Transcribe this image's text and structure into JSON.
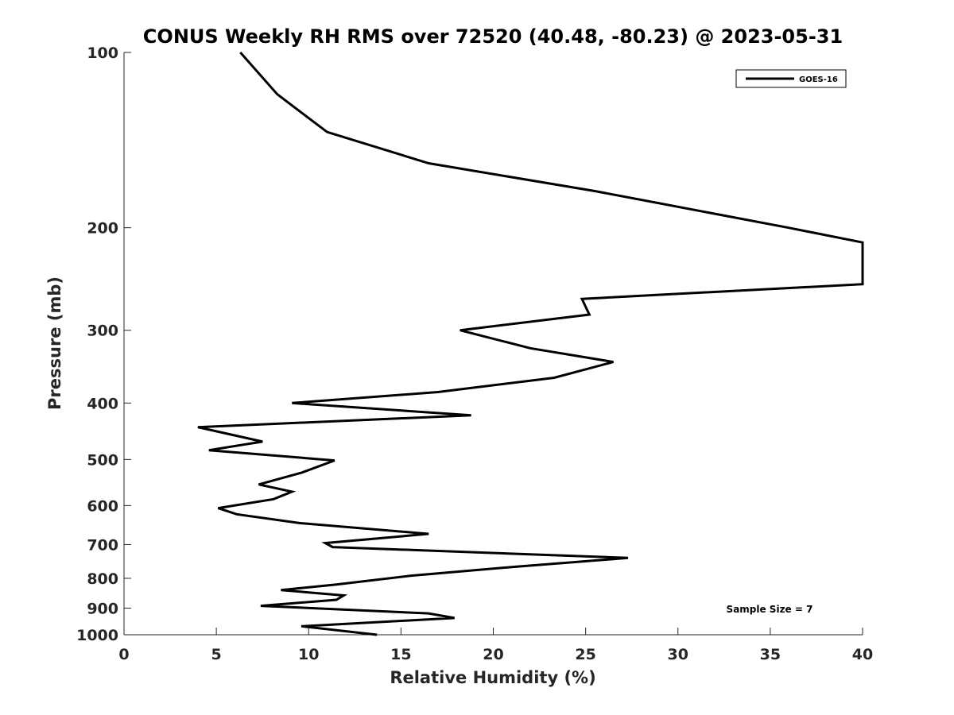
{
  "chart_data": {
    "type": "line",
    "title": "CONUS Weekly RH RMS over 72520 (40.48, -80.23) @ 2023-05-31",
    "xlabel": "Relative Humidity (%)",
    "ylabel": "Pressure (mb)",
    "xlim": [
      0,
      40
    ],
    "ylim": [
      100,
      1000
    ],
    "y_scale": "log",
    "y_reversed": true,
    "x_ticks": [
      "0",
      "5",
      "10",
      "15",
      "20",
      "25",
      "30",
      "35",
      "40"
    ],
    "y_ticks": [
      "100",
      "200",
      "300",
      "400",
      "500",
      "600",
      "700",
      "800",
      "900",
      "1000"
    ],
    "grid": false,
    "legend_position": "top-right",
    "series": [
      {
        "name": "GOES-16",
        "color": "#000000",
        "points": [
          [
            6.3,
            100
          ],
          [
            8.3,
            118
          ],
          [
            11.0,
            137
          ],
          [
            16.5,
            155
          ],
          [
            25.5,
            173
          ],
          [
            36.0,
            200
          ],
          [
            40.0,
            212
          ],
          [
            40.0,
            250
          ],
          [
            24.8,
            265
          ],
          [
            25.2,
            282
          ],
          [
            18.2,
            300
          ],
          [
            22.0,
            322
          ],
          [
            26.5,
            340
          ],
          [
            23.3,
            362
          ],
          [
            17.0,
            383
          ],
          [
            9.1,
            400
          ],
          [
            18.8,
            420
          ],
          [
            4.0,
            440
          ],
          [
            7.5,
            466
          ],
          [
            4.6,
            482
          ],
          [
            11.4,
            502
          ],
          [
            9.6,
            527
          ],
          [
            7.3,
            552
          ],
          [
            9.1,
            568
          ],
          [
            8.1,
            585
          ],
          [
            5.1,
            606
          ],
          [
            6.1,
            621
          ],
          [
            9.5,
            643
          ],
          [
            16.5,
            671
          ],
          [
            10.9,
            696
          ],
          [
            11.3,
            707
          ],
          [
            27.3,
            738
          ],
          [
            21.0,
            765
          ],
          [
            15.5,
            792
          ],
          [
            11.5,
            820
          ],
          [
            8.5,
            838
          ],
          [
            11.9,
            856
          ],
          [
            11.5,
            871
          ],
          [
            7.4,
            892
          ],
          [
            16.5,
            919
          ],
          [
            17.9,
            936
          ],
          [
            9.6,
            967
          ],
          [
            13.7,
            1000
          ]
        ]
      }
    ],
    "annotations": [
      "Sample Size = 7"
    ]
  }
}
